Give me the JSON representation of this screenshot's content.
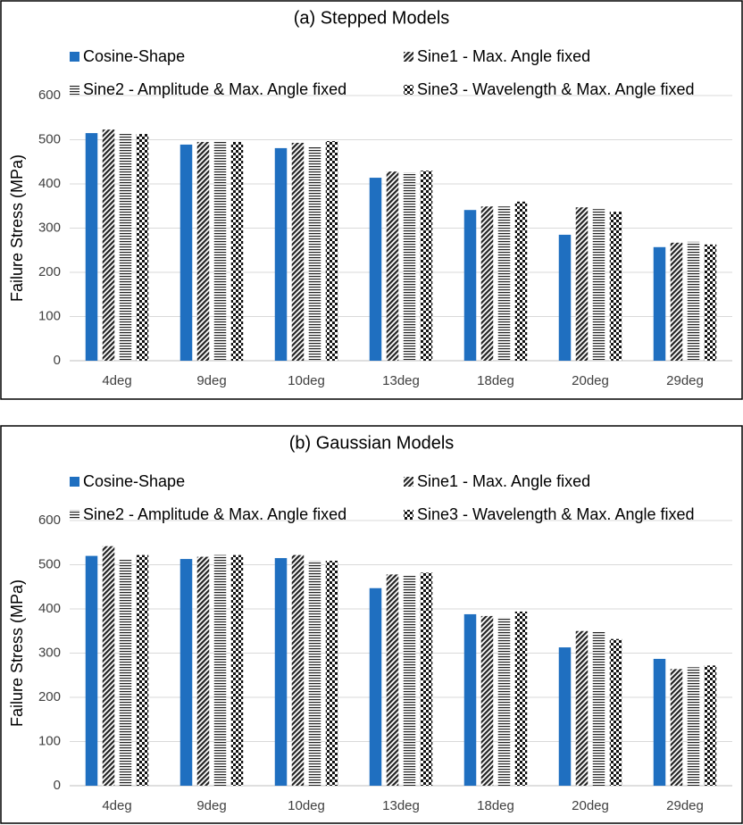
{
  "chart_data": [
    {
      "type": "bar",
      "title": "(a) Stepped Models",
      "y_label": "Failure Stress (MPa)",
      "categories": [
        "4deg",
        "9deg",
        "10deg",
        "13deg",
        "18deg",
        "20deg",
        "29deg"
      ],
      "series": [
        {
          "name": "Cosine-Shape",
          "color": "#1f6fc0",
          "pattern": "solid",
          "values": [
            515,
            489,
            481,
            414,
            341,
            285,
            257
          ]
        },
        {
          "name": "Sine1 - Max. Angle fixed",
          "color": "#000000",
          "pattern": "diagonal",
          "values": [
            523,
            495,
            493,
            428,
            349,
            347,
            267
          ]
        },
        {
          "name": "Sine2 - Amplitude & Max. Angle fixed",
          "color": "#000000",
          "pattern": "horizontal",
          "values": [
            513,
            495,
            485,
            426,
            349,
            343,
            269
          ]
        },
        {
          "name": "Sine3 - Wavelength & Max. Angle fixed",
          "color": "#000000",
          "pattern": "checker",
          "values": [
            513,
            495,
            497,
            430,
            360,
            337,
            263
          ]
        }
      ],
      "ylim": [
        0,
        600
      ],
      "yticks": [
        0,
        100,
        200,
        300,
        400,
        500,
        600
      ],
      "grid": true
    },
    {
      "type": "bar",
      "title": "(b) Gaussian Models",
      "y_label": "Failure Stress (MPa)",
      "categories": [
        "4deg",
        "9deg",
        "10deg",
        "13deg",
        "18deg",
        "20deg",
        "29deg"
      ],
      "series": [
        {
          "name": "Cosine-Shape",
          "color": "#1f6fc0",
          "pattern": "solid",
          "values": [
            520,
            513,
            515,
            447,
            388,
            313,
            287
          ]
        },
        {
          "name": "Sine1 - Max. Angle fixed",
          "color": "#000000",
          "pattern": "diagonal",
          "values": [
            542,
            518,
            522,
            478,
            384,
            350,
            264
          ]
        },
        {
          "name": "Sine2 - Amplitude & Max. Angle fixed",
          "color": "#000000",
          "pattern": "horizontal",
          "values": [
            511,
            522,
            509,
            476,
            381,
            350,
            268
          ]
        },
        {
          "name": "Sine3 - Wavelength & Max. Angle fixed",
          "color": "#000000",
          "pattern": "checker",
          "values": [
            522,
            522,
            509,
            482,
            394,
            332,
            272
          ]
        }
      ],
      "ylim": [
        0,
        600
      ],
      "yticks": [
        0,
        100,
        200,
        300,
        400,
        500,
        600
      ],
      "grid": true
    }
  ]
}
